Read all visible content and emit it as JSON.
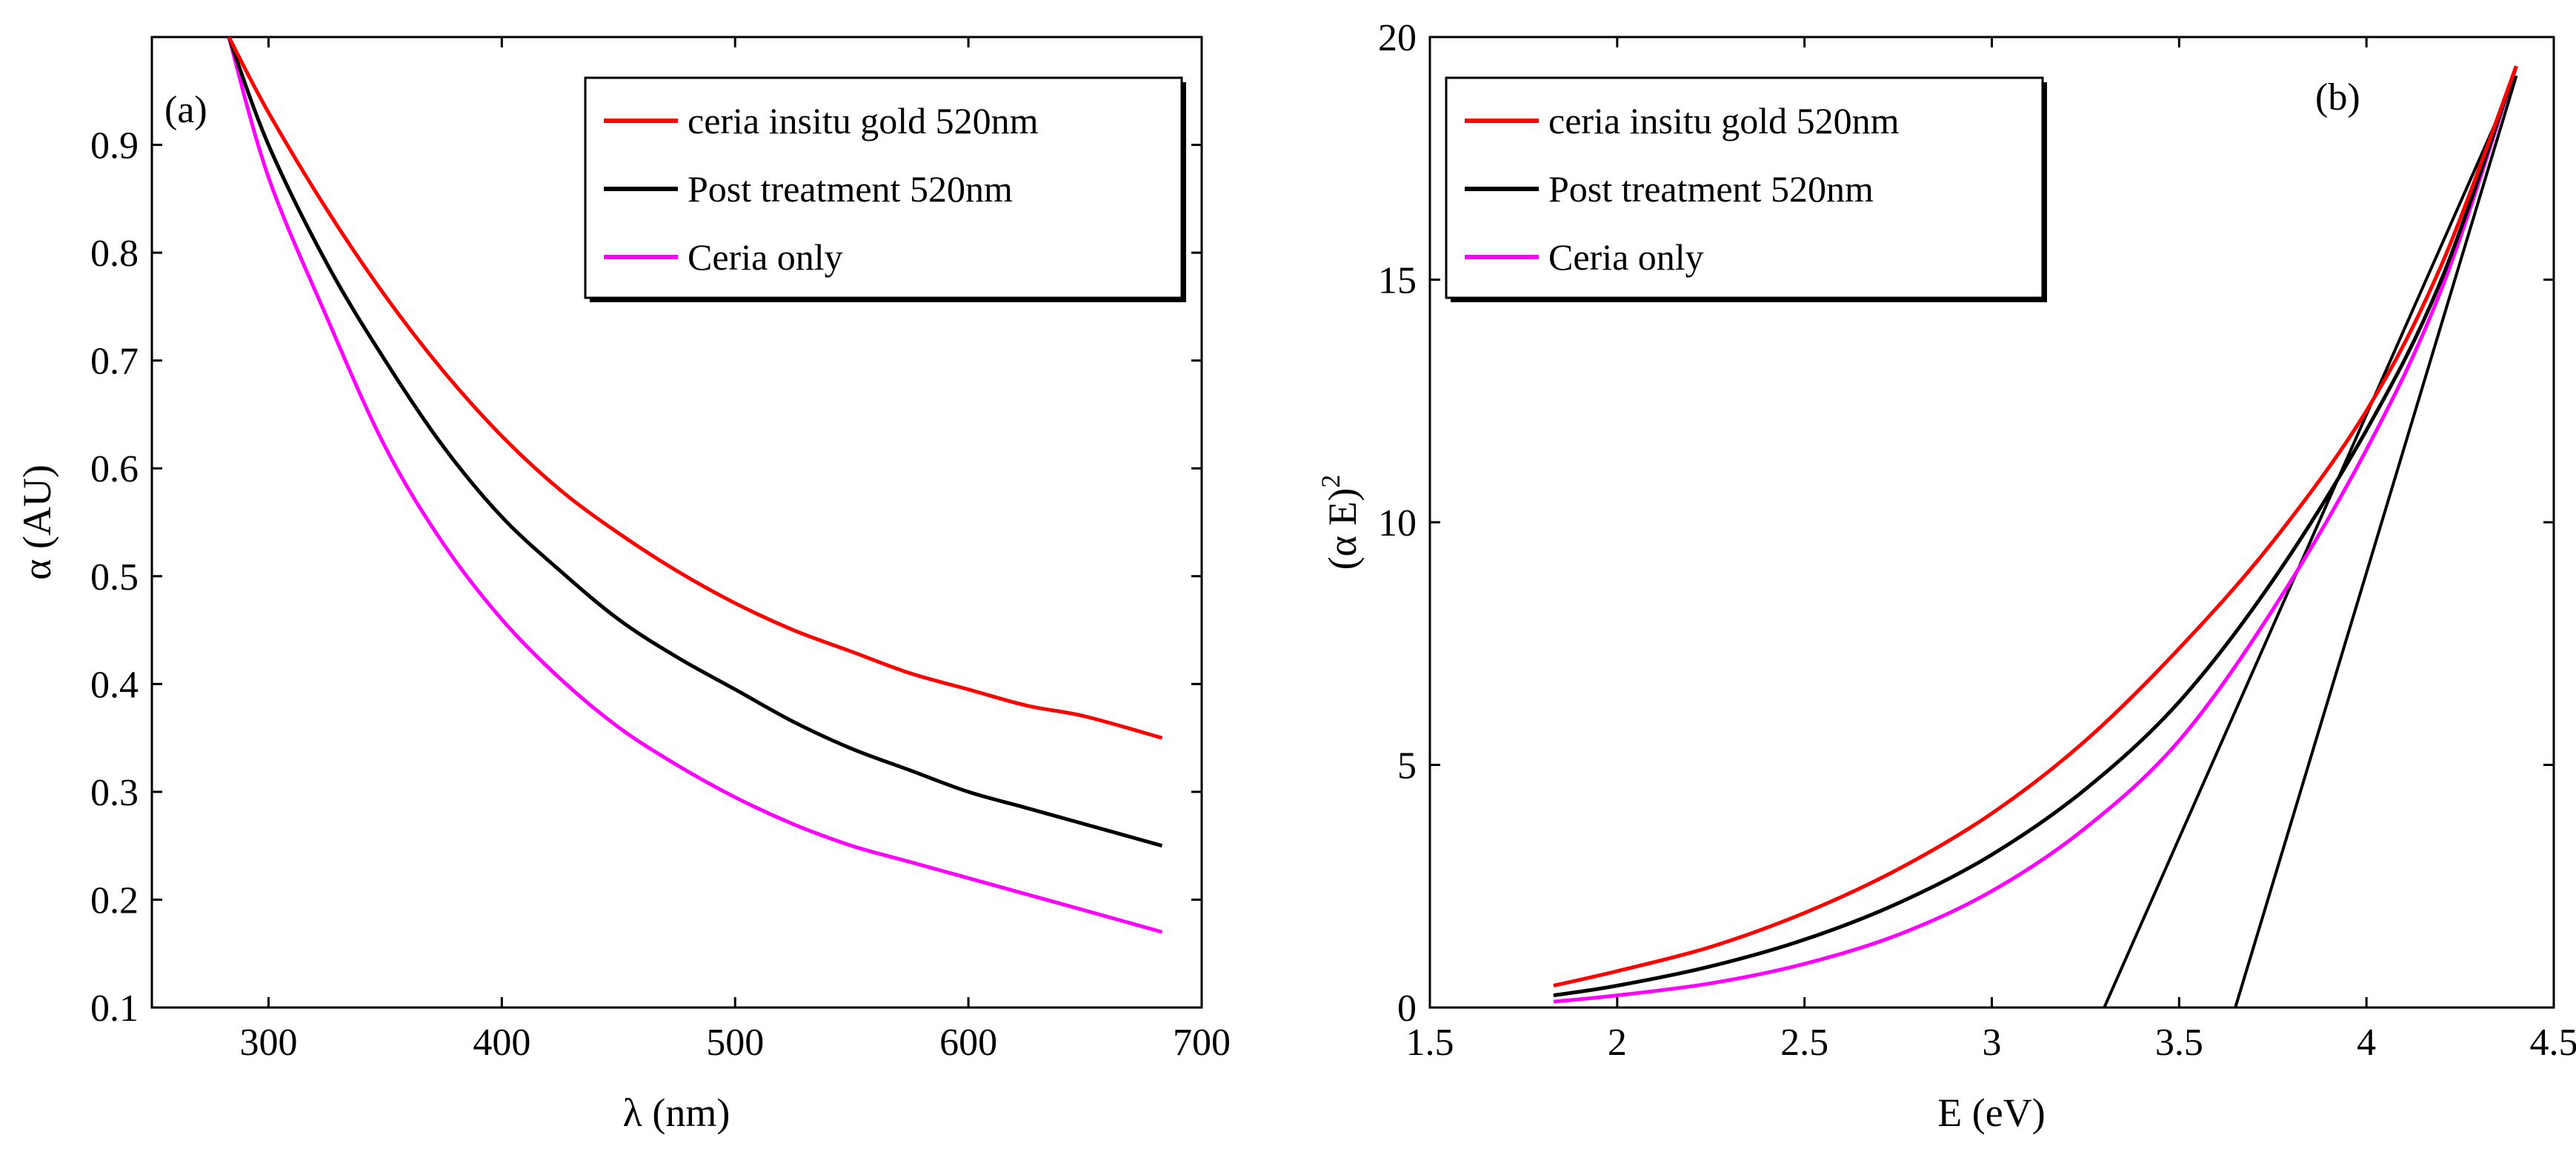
{
  "chart_data": [
    {
      "type": "line",
      "panel_label": "(a)",
      "xlabel": "λ (nm)",
      "ylabel": "α (AU)",
      "xlim": [
        250,
        700
      ],
      "ylim": [
        0.1,
        1.0
      ],
      "x_ticks": [
        300,
        400,
        500,
        600,
        700
      ],
      "y_ticks": [
        0.1,
        0.2,
        0.3,
        0.4,
        0.5,
        0.6,
        0.7,
        0.8,
        0.9
      ],
      "grid": false,
      "legend_position": "top-right",
      "x": [
        283,
        300,
        325,
        350,
        375,
        400,
        425,
        450,
        475,
        500,
        525,
        550,
        575,
        600,
        625,
        650,
        683
      ],
      "series": [
        {
          "name": "ceria insitu gold 520nm",
          "color": "#ff0000",
          "values": [
            1.0,
            0.93,
            0.84,
            0.76,
            0.69,
            0.63,
            0.58,
            0.54,
            0.505,
            0.475,
            0.45,
            0.43,
            0.41,
            0.395,
            0.38,
            0.37,
            0.35
          ]
        },
        {
          "name": "Post treatment 520nm",
          "color": "#000000",
          "values": [
            1.0,
            0.9,
            0.79,
            0.7,
            0.62,
            0.555,
            0.505,
            0.46,
            0.425,
            0.395,
            0.365,
            0.34,
            0.32,
            0.3,
            0.285,
            0.27,
            0.25
          ]
        },
        {
          "name": "Ceria only",
          "color": "#ff00ff",
          "values": [
            1.0,
            0.87,
            0.74,
            0.62,
            0.53,
            0.46,
            0.405,
            0.36,
            0.325,
            0.295,
            0.27,
            0.25,
            0.235,
            0.22,
            0.205,
            0.19,
            0.17
          ]
        }
      ]
    },
    {
      "type": "line",
      "panel_label": "(b)",
      "xlabel": "E (eV)",
      "ylabel": "(α E)2",
      "ylabel_base": "(α E)",
      "ylabel_superscript": "2",
      "xlim": [
        1.5,
        4.5
      ],
      "ylim": [
        0,
        20
      ],
      "x_ticks": [
        1.5,
        2,
        2.5,
        3,
        3.5,
        4,
        4.5
      ],
      "y_ticks": [
        0,
        5,
        10,
        15,
        20
      ],
      "grid": false,
      "legend_position": "top-left",
      "x": [
        1.83,
        2.0,
        2.25,
        2.5,
        2.75,
        3.0,
        3.25,
        3.5,
        3.75,
        4.0,
        4.2,
        4.4
      ],
      "series": [
        {
          "name": "ceria insitu gold 520nm",
          "color": "#ff0000",
          "values": [
            0.45,
            0.75,
            1.25,
            1.95,
            2.85,
            4.0,
            5.5,
            7.4,
            9.6,
            12.3,
            15.3,
            19.4
          ]
        },
        {
          "name": "Post treatment 520nm",
          "color": "#000000",
          "values": [
            0.25,
            0.45,
            0.85,
            1.4,
            2.15,
            3.15,
            4.5,
            6.3,
            8.8,
            11.9,
            15.0,
            19.4
          ]
        },
        {
          "name": "Ceria only",
          "color": "#ff00ff",
          "values": [
            0.12,
            0.25,
            0.5,
            0.9,
            1.5,
            2.4,
            3.7,
            5.5,
            8.2,
            11.5,
            14.8,
            19.4
          ]
        }
      ],
      "tangent_lines": [
        {
          "color": "#000000",
          "x": [
            3.3,
            4.4
          ],
          "values": [
            0,
            19.2
          ]
        },
        {
          "color": "#000000",
          "x": [
            3.65,
            4.4
          ],
          "values": [
            0,
            19.2
          ]
        }
      ]
    }
  ]
}
